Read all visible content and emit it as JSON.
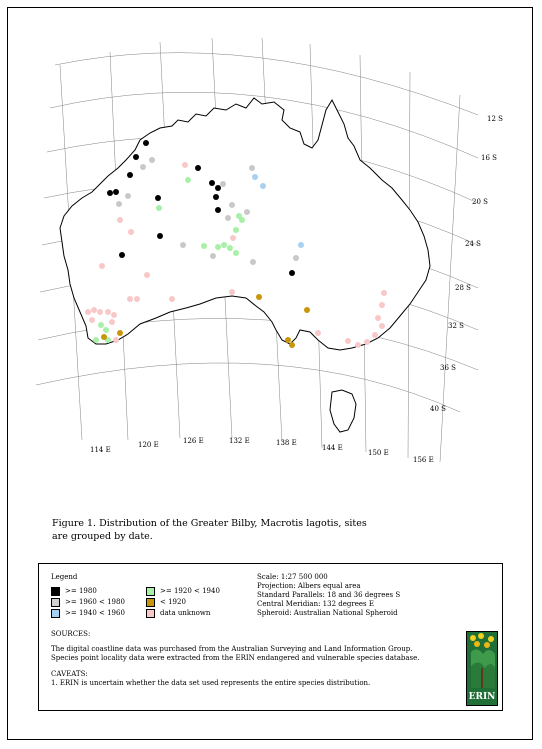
{
  "map": {
    "title": "Distribution of the Greater Bilby",
    "lat_labels": [
      "12 S",
      "16 S",
      "20 S",
      "24 S",
      "28 S",
      "32 S",
      "36 S",
      "40 S"
    ],
    "lon_labels": [
      "114 E",
      "120 E",
      "126 E",
      "132 E",
      "138 E",
      "144 E",
      "150 E",
      "156 E"
    ],
    "colors": {
      "ge_1980": "#000000",
      "1960_1980": "#c8c8c8",
      "1940_1960": "#a8d0f0",
      "1920_1940": "#a8f0a8",
      "lt_1920": "#c8960a",
      "unknown": "#f8c8c8"
    }
  },
  "caption": "Figure 1. Distribution of the Greater Bilby, Macrotis lagotis, sites are grouped by date.",
  "legend": {
    "title": "Legend",
    "items": [
      {
        "label": ">= 1980",
        "color": "#000000"
      },
      {
        "label": ">= 1960 < 1980",
        "color": "#d0d0d0"
      },
      {
        "label": ">= 1940 < 1960",
        "color": "#a8d0f0"
      },
      {
        "label": ">= 1920 < 1940",
        "color": "#a8f0a8"
      },
      {
        "label": "< 1920",
        "color": "#c8960a"
      },
      {
        "label": "data unknown",
        "color": "#f8c8c8"
      }
    ]
  },
  "projection": {
    "scale": "Scale: 1:27 500 000",
    "projection": "Projection: Albers equal area",
    "parallels": "Standard Parallels: 18 and 36 degrees S",
    "meridian": "Central Meridian: 132 degrees E",
    "spheroid": "Spheroid: Australian National Spheroid"
  },
  "sources": {
    "heading": "SOURCES:",
    "line1": "The digital coastline data was purchased from the Australian Surveying and Land Information Group.",
    "line2": "Species point locality data were extracted from the ERIN endangered and vulnerable species database."
  },
  "caveats": {
    "heading": "CAVEATS:",
    "line1": "1. ERIN is uncertain whether the data set used represents the entire species distribution."
  },
  "logo": {
    "text": "ERIN"
  }
}
